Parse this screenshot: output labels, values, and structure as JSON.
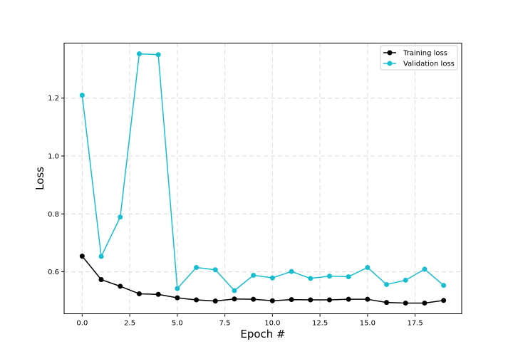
{
  "chart_data": {
    "type": "line",
    "title": "",
    "xlabel": "Epoch #",
    "ylabel": "Loss",
    "xlim": [
      -0.95,
      19.95
    ],
    "ylim": [
      0.455,
      1.39
    ],
    "xticks": [
      0.0,
      2.5,
      5.0,
      7.5,
      10.0,
      12.5,
      15.0,
      17.5
    ],
    "xtick_labels": [
      "0.0",
      "2.5",
      "5.0",
      "7.5",
      "10.0",
      "12.5",
      "15.0",
      "17.5"
    ],
    "yticks": [
      0.6,
      0.8,
      1.0,
      1.2
    ],
    "ytick_labels": [
      "0.6",
      "0.8",
      "1.0",
      "1.2"
    ],
    "grid": true,
    "legend_position": "top-right",
    "x": [
      0,
      1,
      2,
      3,
      4,
      5,
      6,
      7,
      8,
      9,
      10,
      11,
      12,
      13,
      14,
      15,
      16,
      17,
      18,
      19
    ],
    "series": [
      {
        "name": "Training loss",
        "color": "#000000",
        "values": [
          0.654,
          0.573,
          0.55,
          0.524,
          0.522,
          0.51,
          0.503,
          0.499,
          0.506,
          0.505,
          0.5,
          0.504,
          0.503,
          0.503,
          0.505,
          0.505,
          0.494,
          0.492,
          0.492,
          0.501
        ]
      },
      {
        "name": "Validation loss",
        "color": "#17becf",
        "values": [
          1.21,
          0.653,
          0.789,
          1.353,
          1.35,
          0.542,
          0.615,
          0.607,
          0.535,
          0.588,
          0.579,
          0.601,
          0.577,
          0.585,
          0.583,
          0.615,
          0.556,
          0.571,
          0.609,
          0.553
        ]
      }
    ]
  }
}
